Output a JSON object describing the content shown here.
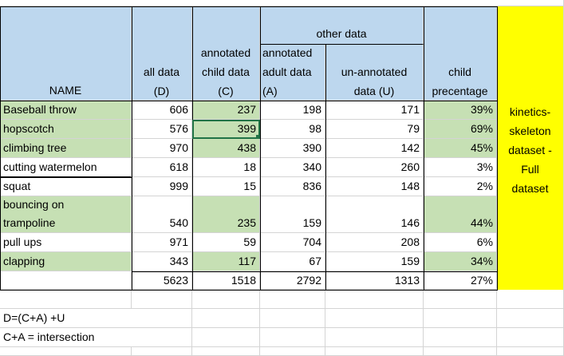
{
  "headers": {
    "name": "NAME",
    "all_data": [
      "all data",
      "(D)"
    ],
    "annotated_child": [
      "annotated",
      "child data",
      "(C)"
    ],
    "other_data": "other data",
    "annotated_adult": [
      "annotated",
      "adult data",
      "(A)"
    ],
    "unannotated": [
      "un-annotated",
      "data (U)"
    ],
    "child_pct": [
      "child",
      "precentage"
    ]
  },
  "rows": [
    {
      "name": "Baseball throw",
      "D": "606",
      "C": "237",
      "A": "198",
      "U": "171",
      "pct": "39%"
    },
    {
      "name": "hopscotch",
      "D": "576",
      "C": "399",
      "A": "98",
      "U": "79",
      "pct": "69%"
    },
    {
      "name": "climbing tree",
      "D": "970",
      "C": "438",
      "A": "390",
      "U": "142",
      "pct": "45%"
    },
    {
      "name": "cutting watermelon",
      "D": "618",
      "C": "18",
      "A": "340",
      "U": "260",
      "pct": "3%"
    },
    {
      "name": "squat",
      "D": "999",
      "C": "15",
      "A": "836",
      "U": "148",
      "pct": "2%"
    },
    {
      "name": [
        "bouncing on",
        "trampoline"
      ],
      "D": "540",
      "C": "235",
      "A": "159",
      "U": "146",
      "pct": "44%"
    },
    {
      "name": "pull ups",
      "D": "971",
      "C": "59",
      "A": "704",
      "U": "208",
      "pct": "6%"
    },
    {
      "name": "clapping",
      "D": "343",
      "C": "117",
      "A": "67",
      "U": "159",
      "pct": "34%"
    }
  ],
  "totals": {
    "D": "5623",
    "C": "1518",
    "A": "2792",
    "U": "1313",
    "pct": "27%"
  },
  "side_note": [
    "kinetics-",
    "skeleton",
    "dataset -",
    "Full",
    "dataset"
  ],
  "notes": [
    "D=(C+A) +U",
    "C+A = intersection"
  ],
  "colors": {
    "header_blue": "#bdd7ee",
    "highlight_green": "#c6e0b4",
    "note_yellow": "#ffff00",
    "selection": "#217346"
  }
}
